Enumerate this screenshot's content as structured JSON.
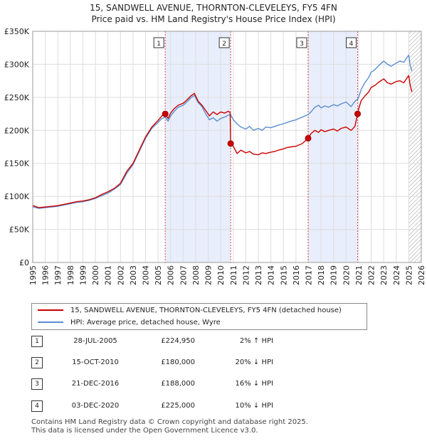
{
  "title_line1": "15, SANDWELL AVENUE, THORNTON-CLEVELEYS, FY5 4FN",
  "title_line2": "Price paid vs. HM Land Registry's House Price Index (HPI)",
  "chart_data": {
    "type": "line",
    "xlim": [
      1995,
      2026
    ],
    "ylim": [
      0,
      350000
    ],
    "y_ticks": [
      0,
      50000,
      100000,
      150000,
      200000,
      250000,
      300000,
      350000
    ],
    "y_tick_labels": [
      "£0",
      "£50K",
      "£100K",
      "£150K",
      "£200K",
      "£250K",
      "£300K",
      "£350K"
    ],
    "x_ticks": [
      1995,
      1996,
      1997,
      1998,
      1999,
      2000,
      2001,
      2002,
      2003,
      2004,
      2005,
      2006,
      2007,
      2008,
      2009,
      2010,
      2011,
      2012,
      2013,
      2014,
      2015,
      2016,
      2017,
      2018,
      2019,
      2020,
      2021,
      2022,
      2023,
      2024,
      2025,
      2026
    ],
    "x_tick_labels": [
      "1995",
      "1996",
      "1997",
      "1998",
      "1999",
      "2000",
      "2001",
      "2002",
      "2003",
      "2004",
      "2005",
      "2006",
      "2007",
      "2008",
      "2009",
      "2010",
      "2011",
      "2012",
      "2013",
      "2014",
      "2015",
      "2016",
      "2017",
      "2018",
      "2019",
      "2020",
      "2021",
      "2022",
      "2023",
      "2024",
      "2025",
      "2026"
    ],
    "series": [
      {
        "name": "15, SANDWELL AVENUE, THORNTON-CLEVELEYS, FY5 4FN (detached house)",
        "color": "#cc0000",
        "x": [
          1995.0,
          1995.5,
          1996.0,
          1996.5,
          1997.0,
          1997.5,
          1998.0,
          1998.5,
          1999.0,
          1999.5,
          2000.0,
          2000.5,
          2001.0,
          2001.5,
          2002.0,
          2002.5,
          2003.0,
          2003.5,
          2004.0,
          2004.5,
          2005.0,
          2005.3,
          2005.57,
          2005.8,
          2006.0,
          2006.3,
          2006.6,
          2007.0,
          2007.3,
          2007.6,
          2007.9,
          2008.2,
          2008.5,
          2008.8,
          2009.1,
          2009.4,
          2009.7,
          2010.0,
          2010.3,
          2010.6,
          2010.75,
          2010.79,
          2011.0,
          2011.3,
          2011.6,
          2012.0,
          2012.3,
          2012.6,
          2013.0,
          2013.3,
          2013.6,
          2014.0,
          2014.3,
          2014.6,
          2015.0,
          2015.3,
          2015.6,
          2016.0,
          2016.5,
          2016.97,
          2017.2,
          2017.5,
          2017.8,
          2018.0,
          2018.3,
          2018.6,
          2019.0,
          2019.3,
          2019.6,
          2020.0,
          2020.4,
          2020.7,
          2020.92,
          2021.0,
          2021.2,
          2021.5,
          2021.8,
          2022.0,
          2022.3,
          2022.6,
          2023.0,
          2023.3,
          2023.6,
          2024.0,
          2024.3,
          2024.6,
          2024.85,
          2025.0,
          2025.1,
          2025.25
        ],
        "values": [
          86000,
          83000,
          84000,
          85000,
          86000,
          88000,
          90000,
          92000,
          93000,
          95000,
          98000,
          103000,
          107000,
          112000,
          120000,
          138000,
          150000,
          170000,
          190000,
          205000,
          215000,
          222000,
          224950,
          218000,
          226000,
          233000,
          238000,
          241000,
          246000,
          252000,
          256000,
          244000,
          238000,
          230000,
          222000,
          228000,
          224000,
          228000,
          226000,
          229000,
          227000,
          180000,
          176000,
          165000,
          170000,
          166000,
          168000,
          164000,
          163000,
          166000,
          165000,
          167000,
          168000,
          170000,
          172000,
          174000,
          175000,
          176000,
          180000,
          188000,
          195000,
          200000,
          197000,
          201000,
          198000,
          200000,
          202000,
          199000,
          203000,
          205000,
          200000,
          206000,
          225000,
          232000,
          245000,
          252000,
          258000,
          265000,
          268000,
          273000,
          278000,
          272000,
          270000,
          274000,
          275000,
          272000,
          279000,
          283000,
          270000,
          258000
        ]
      },
      {
        "name": "HPI: Average price, detached house, Wyre",
        "color": "#5a8ed1",
        "x": [
          1995.0,
          1995.5,
          1996.0,
          1996.5,
          1997.0,
          1997.5,
          1998.0,
          1998.5,
          1999.0,
          1999.5,
          2000.0,
          2000.5,
          2001.0,
          2001.5,
          2002.0,
          2002.5,
          2003.0,
          2003.5,
          2004.0,
          2004.5,
          2005.0,
          2005.3,
          2005.57,
          2005.8,
          2006.0,
          2006.3,
          2006.6,
          2007.0,
          2007.3,
          2007.6,
          2007.9,
          2008.2,
          2008.5,
          2008.8,
          2009.1,
          2009.4,
          2009.7,
          2010.0,
          2010.3,
          2010.6,
          2010.79,
          2011.0,
          2011.3,
          2011.6,
          2012.0,
          2012.3,
          2012.6,
          2013.0,
          2013.3,
          2013.6,
          2014.0,
          2014.3,
          2014.6,
          2015.0,
          2015.3,
          2015.6,
          2016.0,
          2016.5,
          2016.97,
          2017.2,
          2017.5,
          2017.8,
          2018.0,
          2018.3,
          2018.6,
          2019.0,
          2019.3,
          2019.6,
          2020.0,
          2020.4,
          2020.7,
          2020.92,
          2021.0,
          2021.2,
          2021.5,
          2021.8,
          2022.0,
          2022.3,
          2022.6,
          2023.0,
          2023.3,
          2023.6,
          2024.0,
          2024.3,
          2024.6,
          2024.85,
          2025.0,
          2025.1,
          2025.25
        ],
        "values": [
          84000,
          82000,
          83000,
          84000,
          85000,
          87000,
          89000,
          91000,
          92000,
          94000,
          97000,
          101000,
          105000,
          111000,
          118000,
          135000,
          148000,
          168000,
          188000,
          203000,
          212000,
          218000,
          220000,
          214000,
          222000,
          229000,
          235000,
          238000,
          243000,
          249000,
          253000,
          242000,
          236000,
          225000,
          216000,
          219000,
          214000,
          218000,
          220000,
          223000,
          224000,
          216000,
          210000,
          205000,
          202000,
          206000,
          200000,
          203000,
          200000,
          205000,
          204000,
          206000,
          208000,
          210000,
          212000,
          214000,
          216000,
          220000,
          224000,
          228000,
          235000,
          238000,
          234000,
          237000,
          235000,
          239000,
          237000,
          240000,
          243000,
          236000,
          244000,
          247000,
          250000,
          262000,
          272000,
          280000,
          288000,
          292000,
          298000,
          305000,
          300000,
          297000,
          302000,
          305000,
          303000,
          310000,
          314000,
          300000,
          290000
        ]
      }
    ],
    "sales": [
      {
        "id": "1",
        "x": 2005.57,
        "value": 224950
      },
      {
        "id": "2",
        "x": 2010.79,
        "value": 180000
      },
      {
        "id": "3",
        "x": 2016.97,
        "value": 188000
      },
      {
        "id": "4",
        "x": 2020.92,
        "value": 225000
      }
    ],
    "shaded_spans": [
      [
        2005.57,
        2010.79
      ],
      [
        2016.97,
        2020.92
      ]
    ],
    "hatched_from": 2025.0
  },
  "legend": {
    "series1": "15, SANDWELL AVENUE, THORNTON-CLEVELEYS, FY5 4FN (detached house)",
    "series2": "HPI: Average price, detached house, Wyre",
    "color1": "#cc0000",
    "color2": "#5a8ed1"
  },
  "sales_table": [
    {
      "id": "1",
      "date": "28-JUL-2005",
      "price": "£224,950",
      "hpi": "2% ↑ HPI"
    },
    {
      "id": "2",
      "date": "15-OCT-2010",
      "price": "£180,000",
      "hpi": "20% ↓ HPI"
    },
    {
      "id": "3",
      "date": "21-DEC-2016",
      "price": "£188,000",
      "hpi": "16% ↓ HPI"
    },
    {
      "id": "4",
      "date": "03-DEC-2020",
      "price": "£225,000",
      "hpi": "10% ↓ HPI"
    }
  ],
  "footer_line1": "Contains HM Land Registry data © Crown copyright and database right 2025.",
  "footer_line2": "This data is licensed under the Open Government Licence v3.0."
}
